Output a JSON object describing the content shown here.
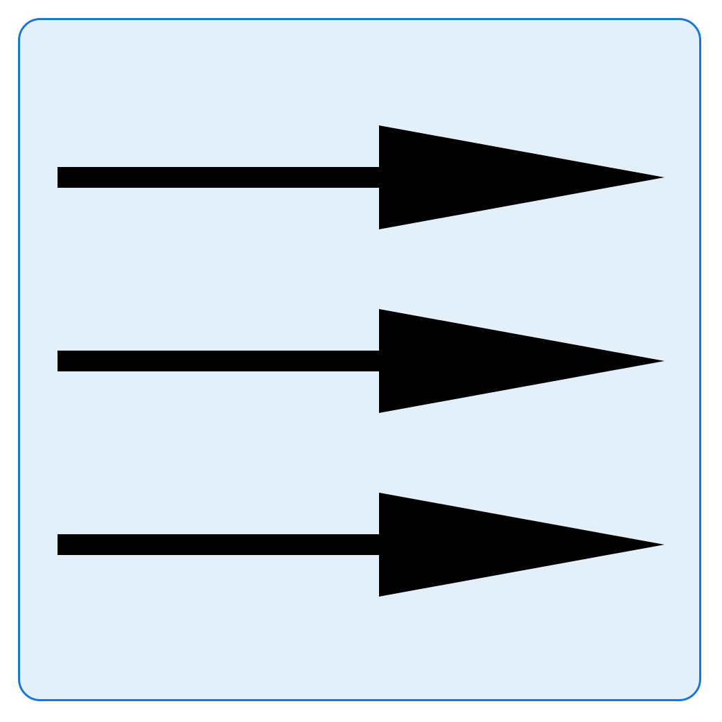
{
  "icon": {
    "name": "three-right-arrows-icon",
    "arrow_count": 3,
    "direction": "right"
  },
  "colors": {
    "panel_background": "#e3f0fa",
    "panel_border": "#1976d2",
    "arrow_fill": "#000000",
    "page_background": "#ffffff"
  }
}
